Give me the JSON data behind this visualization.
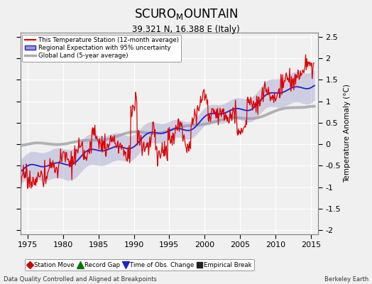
{
  "title_line1": "SCURO",
  "title_sub_m": "M",
  "title_line1_suffix": "OUNTAIN",
  "title_line2": "39.321 N, 16.388 E (Italy)",
  "ylabel": "Temperature Anomaly (°C)",
  "xlabel_left": "Data Quality Controlled and Aligned at Breakpoints",
  "xlabel_right": "Berkeley Earth",
  "xlim": [
    1974,
    2016
  ],
  "ylim": [
    -2.1,
    2.6
  ],
  "yticks": [
    -2,
    -1.5,
    -1,
    -0.5,
    0,
    0.5,
    1,
    1.5,
    2,
    2.5
  ],
  "xticks": [
    1975,
    1980,
    1985,
    1990,
    1995,
    2000,
    2005,
    2010,
    2015
  ],
  "bg_color": "#f0f0f0",
  "plot_bg_color": "#f0f0f0",
  "legend_entries": [
    "This Temperature Station (12-month average)",
    "Regional Expectation with 95% uncertainty",
    "Global Land (5-year average)"
  ],
  "station_color": "#dd0000",
  "regional_color": "#2222cc",
  "regional_fill_color": "#9999cc",
  "global_color": "#aaaaaa",
  "bottom_legend": {
    "station_move": {
      "color": "#cc0000",
      "marker": "D",
      "label": "Station Move"
    },
    "record_gap": {
      "color": "#007700",
      "marker": "^",
      "label": "Record Gap"
    },
    "time_obs": {
      "color": "#2222cc",
      "marker": "v",
      "label": "Time of Obs. Change"
    },
    "empirical": {
      "color": "#222222",
      "marker": "s",
      "label": "Empirical Break"
    }
  }
}
